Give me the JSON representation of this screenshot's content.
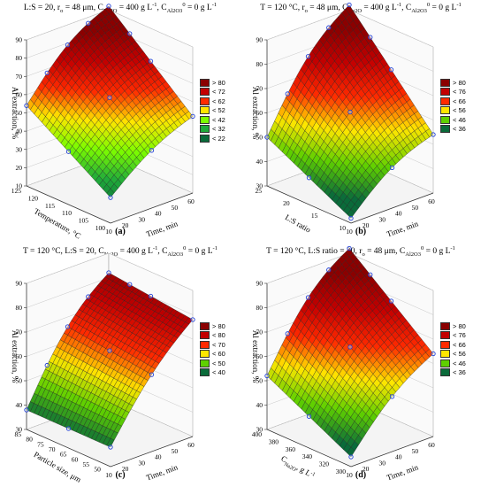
{
  "panels": [
    {
      "id": "a",
      "title_parts": [
        "L:S = 20, r",
        "o",
        " = 48 μm, C",
        "Na2O",
        " = 400 g L",
        "-1",
        ", C",
        "Al2O3",
        "0",
        " = 0 g L",
        "-1"
      ],
      "label": "(a)",
      "zlabel": "Al extraction, %",
      "xlabel": "Time, min",
      "ylabel": "Temperature, °C",
      "legend": [
        "> 80",
        "< 72",
        "< 62",
        "< 52",
        "< 42",
        "< 32",
        "< 22"
      ]
    },
    {
      "id": "b",
      "title_parts": [
        "T = 120 °C, r",
        "o",
        " = 48 μm, C",
        "Na2O",
        " = 400 g L",
        "-1",
        ", C",
        "Al2O3",
        "0",
        " = 0 g L",
        "-1"
      ],
      "label": "(b)",
      "zlabel": "Al extraction, %",
      "xlabel": "Time, min",
      "ylabel": "L:S ratio",
      "legend": [
        "> 80",
        "< 76",
        "< 66",
        "< 56",
        "< 46",
        "< 36"
      ]
    },
    {
      "id": "c",
      "title_parts": [
        "T = 120 °C, L:S = 20, C",
        "Na2O",
        " = 400 g L",
        "-1",
        ", C",
        "Al2O3",
        "0",
        " = 0 g L",
        "-1"
      ],
      "label": "(c)",
      "zlabel": "Al extraction, %",
      "xlabel": "Time, min",
      "ylabel": "Particle size, μm",
      "legend": [
        "> 80",
        "< 80",
        "< 70",
        "< 60",
        "< 50",
        "< 40"
      ]
    },
    {
      "id": "d",
      "title_parts": [
        "T = 120 °C, L:S ratio = 20, r",
        "o",
        " = 48 μm, C",
        "Al2O3",
        "0",
        " = 0 g L",
        "-1"
      ],
      "label": "(d)",
      "zlabel": "Al extraction, %",
      "xlabel": "Time, min",
      "ylabel": "C",
      "ylabel_sub": "Na2O",
      "ylabel_tail": ", g L",
      "ylabel_sup": "-1",
      "legend": [
        "> 80",
        "< 76",
        "< 66",
        "< 56",
        "< 46",
        "< 36"
      ]
    }
  ],
  "chart_data": [
    {
      "type": "surface",
      "panel": "a",
      "x_name": "Time, min",
      "x_ticks": [
        10,
        20,
        30,
        40,
        50,
        60
      ],
      "xlim": [
        10,
        60
      ],
      "y_name": "Temperature, °C",
      "y_ticks": [
        100,
        105,
        110,
        115,
        120,
        125
      ],
      "ylim": [
        100,
        125
      ],
      "z_name": "Al extraction, %",
      "z_ticks": [
        10,
        20,
        30,
        40,
        50,
        60,
        70,
        80,
        90
      ],
      "zlim": [
        10,
        90
      ],
      "corners": {
        "x_min_y_min": 24,
        "x_max_y_min": 52,
        "x_min_y_max": 54,
        "x_max_y_max": 92
      },
      "legend_levels": [
        "> 80",
        "< 72",
        "< 62",
        "< 52",
        "< 42",
        "< 32",
        "< 22"
      ],
      "level_colors": [
        "#8b0000",
        "#c40000",
        "#ff2a00",
        "#ffe600",
        "#7cfc00",
        "#1faa3a",
        "#0a6b3a"
      ]
    },
    {
      "type": "surface",
      "panel": "b",
      "x_name": "Time, min",
      "x_ticks": [
        10,
        20,
        30,
        40,
        50,
        60
      ],
      "xlim": [
        10,
        60
      ],
      "y_name": "L:S ratio",
      "y_ticks": [
        10,
        15,
        20,
        25
      ],
      "ylim": [
        10,
        25
      ],
      "z_name": "Al extraction, %",
      "z_ticks": [
        30,
        40,
        50,
        60,
        70,
        80,
        90
      ],
      "zlim": [
        30,
        90
      ],
      "corners": {
        "x_min_y_min": 32,
        "x_max_y_min": 54,
        "x_min_y_max": 50,
        "x_max_y_max": 92
      },
      "legend_levels": [
        "> 80",
        "< 76",
        "< 66",
        "< 56",
        "< 46",
        "< 36"
      ],
      "level_colors": [
        "#8b0000",
        "#c40000",
        "#ff2a00",
        "#ffe600",
        "#5fd000",
        "#0a6b3a"
      ]
    },
    {
      "type": "surface",
      "panel": "c",
      "x_name": "Time, min",
      "x_ticks": [
        10,
        20,
        30,
        40,
        50,
        60
      ],
      "xlim": [
        10,
        60
      ],
      "y_name": "Particle size, μm",
      "y_ticks": [
        50,
        55,
        60,
        65,
        70,
        75,
        80,
        85
      ],
      "ylim": [
        48,
        85
      ],
      "z_name": "Al extraction, %",
      "z_ticks": [
        30,
        40,
        50,
        60,
        70,
        80,
        90
      ],
      "zlim": [
        30,
        90
      ],
      "corners": {
        "x_min_y_min": 38,
        "x_max_y_min": 78,
        "x_min_y_max": 38,
        "x_max_y_max": 82
      },
      "legend_levels": [
        "> 80",
        "< 80",
        "< 70",
        "< 60",
        "< 50",
        "< 40"
      ],
      "level_colors": [
        "#8b0000",
        "#c40000",
        "#ff2a00",
        "#ffe600",
        "#5fd000",
        "#0a6b3a"
      ]
    },
    {
      "type": "surface",
      "panel": "d",
      "x_name": "Time, min",
      "x_ticks": [
        10,
        20,
        30,
        40,
        50,
        60
      ],
      "xlim": [
        10,
        60
      ],
      "y_name": "CNa2O, g L-1",
      "y_ticks": [
        300,
        320,
        340,
        360,
        380,
        400
      ],
      "ylim": [
        300,
        400
      ],
      "z_name": "Al extraction, %",
      "z_ticks": [
        30,
        40,
        50,
        60,
        70,
        80,
        90
      ],
      "zlim": [
        30,
        90
      ],
      "corners": {
        "x_min_y_min": 34,
        "x_max_y_min": 64,
        "x_min_y_max": 52,
        "x_max_y_max": 92
      },
      "legend_levels": [
        "> 80",
        "< 76",
        "< 66",
        "< 56",
        "< 46",
        "< 36"
      ],
      "level_colors": [
        "#8b0000",
        "#c40000",
        "#ff2a00",
        "#ffe600",
        "#5fd000",
        "#0a6b3a"
      ]
    }
  ]
}
